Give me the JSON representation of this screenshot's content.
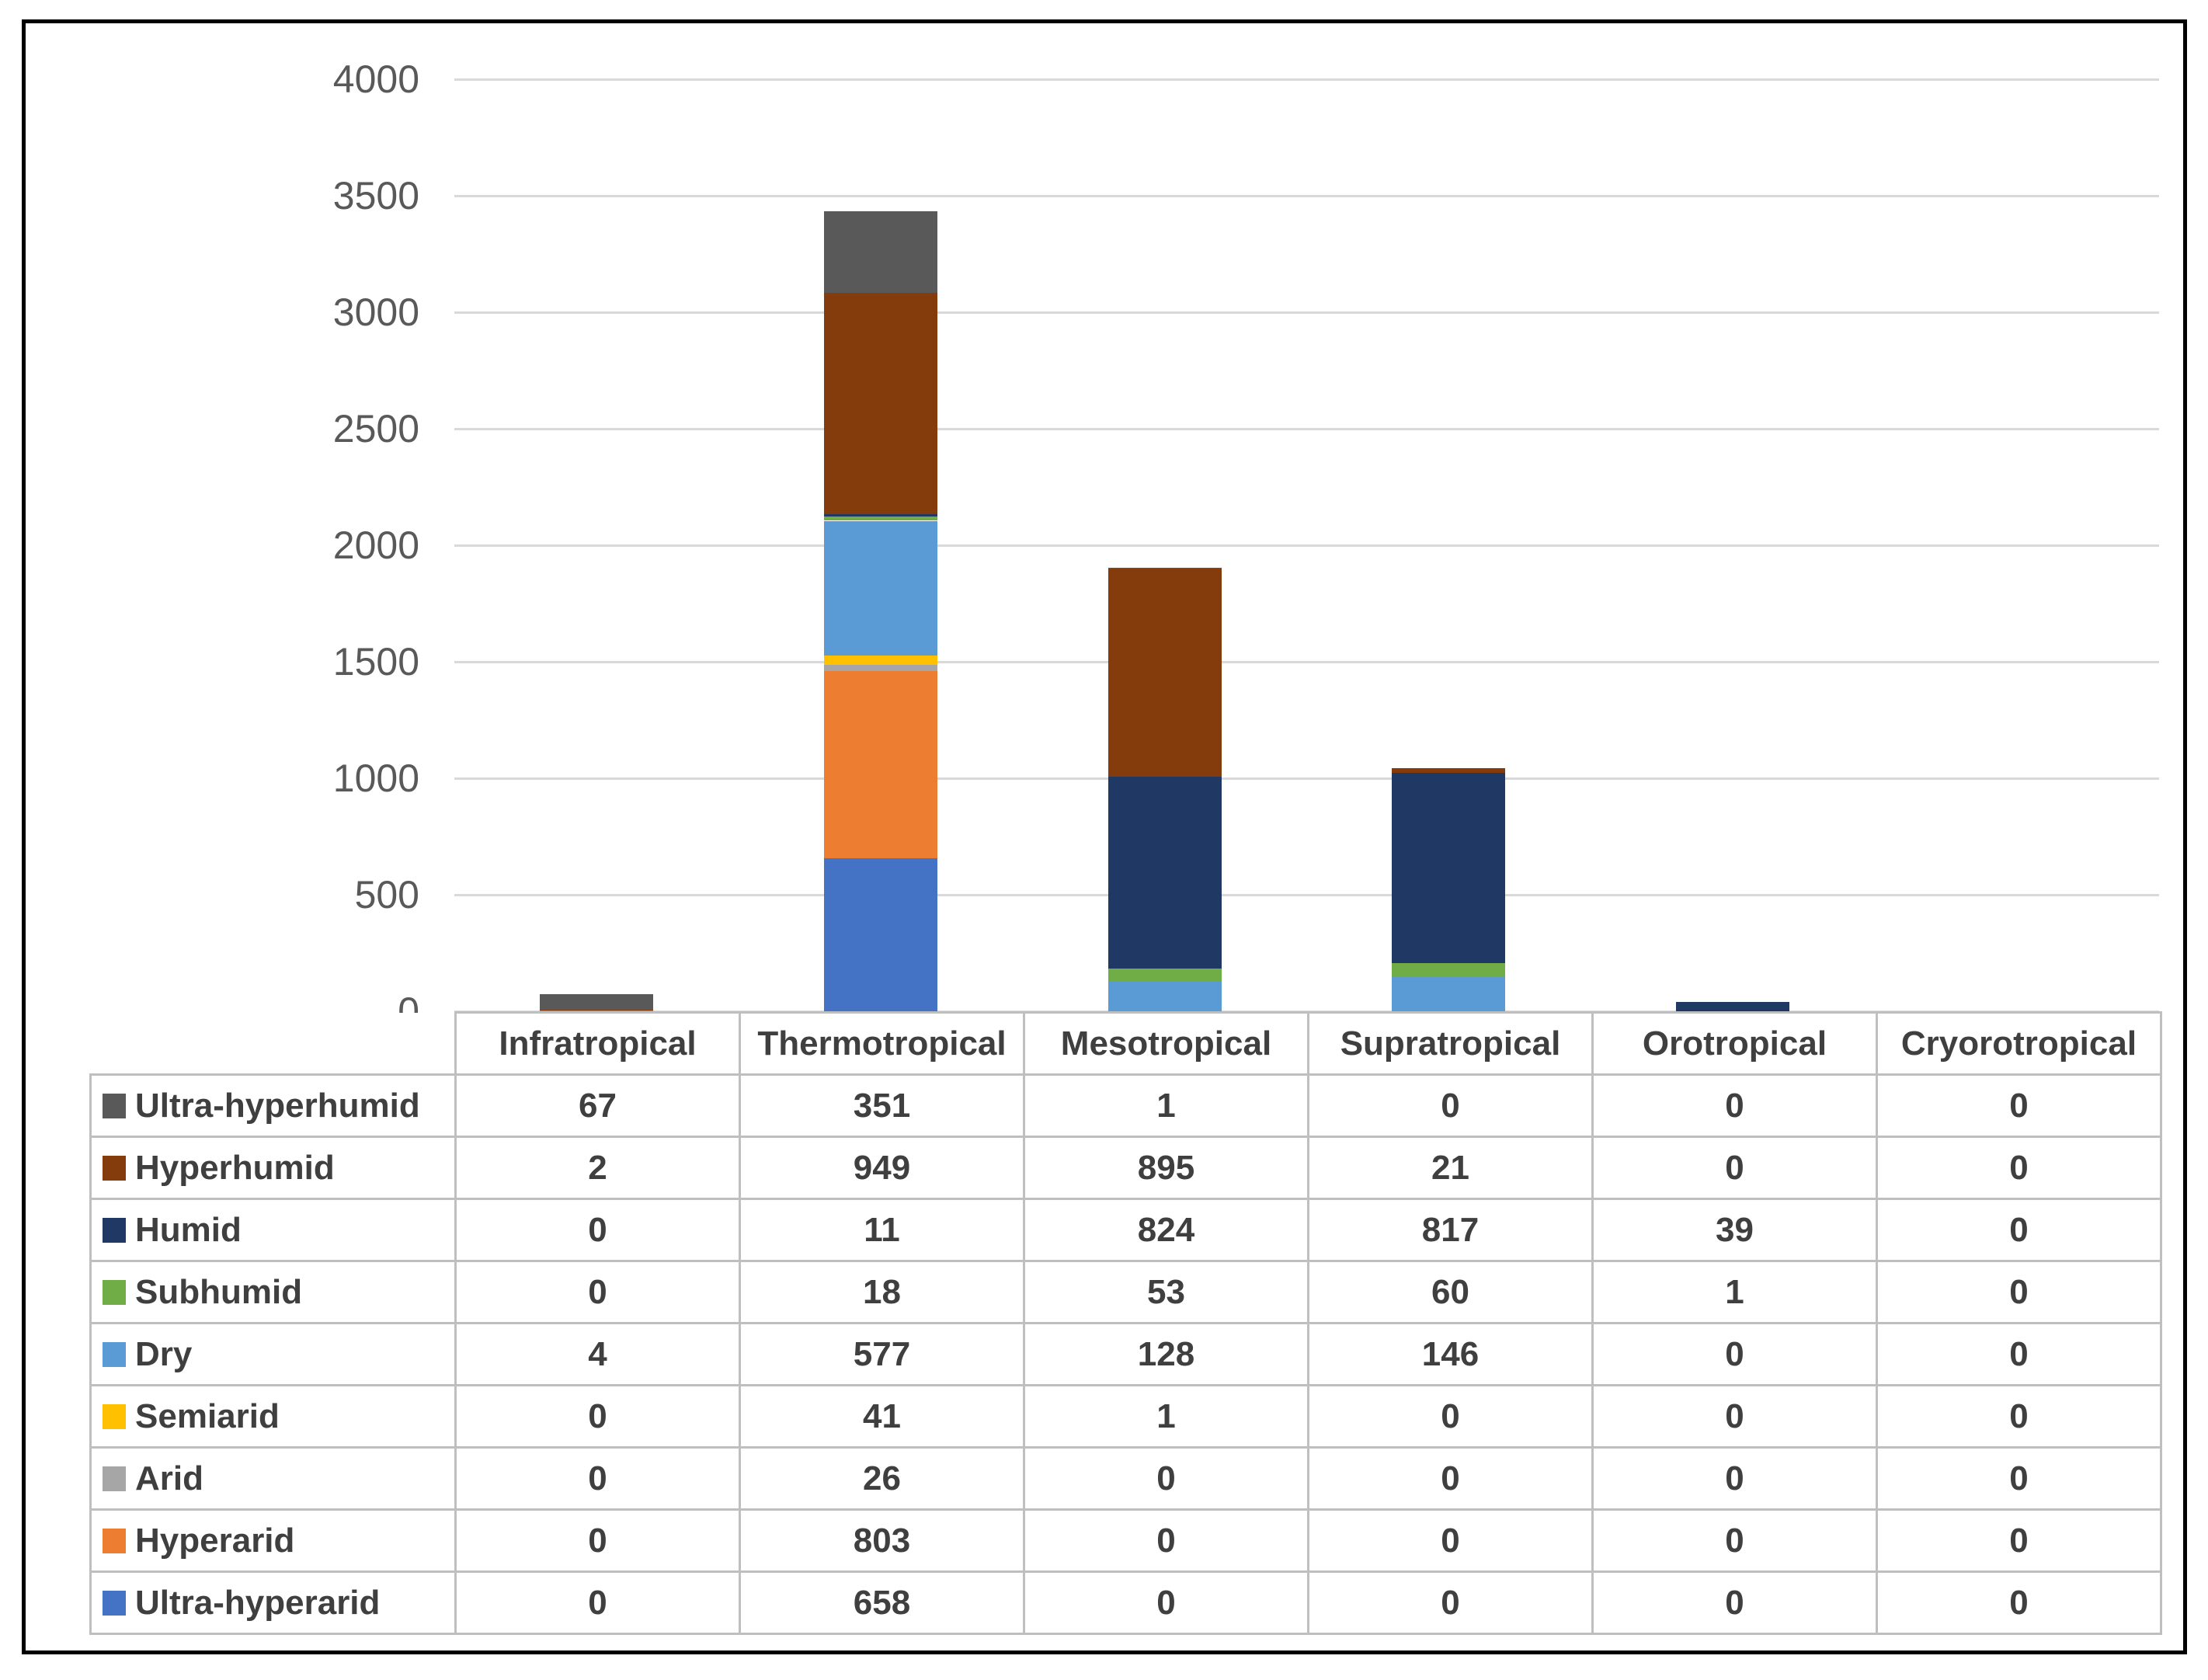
{
  "chart_data": {
    "type": "bar",
    "stacked": true,
    "title": "",
    "xlabel": "",
    "ylabel": "",
    "categories": [
      "Infratropical",
      "Thermotropical",
      "Mesotropical",
      "Supratropical",
      "Orotropical",
      "Cryorotropical"
    ],
    "series": [
      {
        "name": "Ultra-hyperhumid",
        "color": "#595959",
        "values": [
          67,
          351,
          1,
          0,
          0,
          0
        ]
      },
      {
        "name": "Hyperhumid",
        "color": "#843C0C",
        "values": [
          2,
          949,
          895,
          21,
          0,
          0
        ]
      },
      {
        "name": "Humid",
        "color": "#1F3864",
        "values": [
          0,
          11,
          824,
          817,
          39,
          0
        ]
      },
      {
        "name": "Subhumid",
        "color": "#70AD47",
        "values": [
          0,
          18,
          53,
          60,
          1,
          0
        ]
      },
      {
        "name": "Dry",
        "color": "#5B9BD5",
        "values": [
          4,
          577,
          128,
          146,
          0,
          0
        ]
      },
      {
        "name": "Semiarid",
        "color": "#FFC000",
        "values": [
          0,
          41,
          1,
          0,
          0,
          0
        ]
      },
      {
        "name": "Arid",
        "color": "#A6A6A6",
        "values": [
          0,
          26,
          0,
          0,
          0,
          0
        ]
      },
      {
        "name": "Hyperarid",
        "color": "#ED7D31",
        "values": [
          0,
          803,
          0,
          0,
          0,
          0
        ]
      },
      {
        "name": "Ultra-hyperarid",
        "color": "#4472C4",
        "values": [
          0,
          658,
          0,
          0,
          0,
          0
        ]
      }
    ],
    "stack_order_bottom_to_top": [
      "Ultra-hyperarid",
      "Hyperarid",
      "Arid",
      "Semiarid",
      "Dry",
      "Subhumid",
      "Humid",
      "Hyperhumid",
      "Ultra-hyperhumid"
    ],
    "ylim": [
      0,
      4000
    ],
    "ytick_step": 500,
    "ytick_labels": [
      "0",
      "500",
      "1000",
      "1500",
      "2000",
      "2500",
      "3000",
      "3500",
      "4000"
    ],
    "grid": true,
    "legend_position": "data-table-left-column",
    "colors": {
      "gridline": "#D9D9D9",
      "table_border": "#BFBFBF",
      "axis_text": "#595959",
      "table_text": "#3F3F3F",
      "frame_border": "#000000",
      "background": "#FFFFFF"
    }
  }
}
